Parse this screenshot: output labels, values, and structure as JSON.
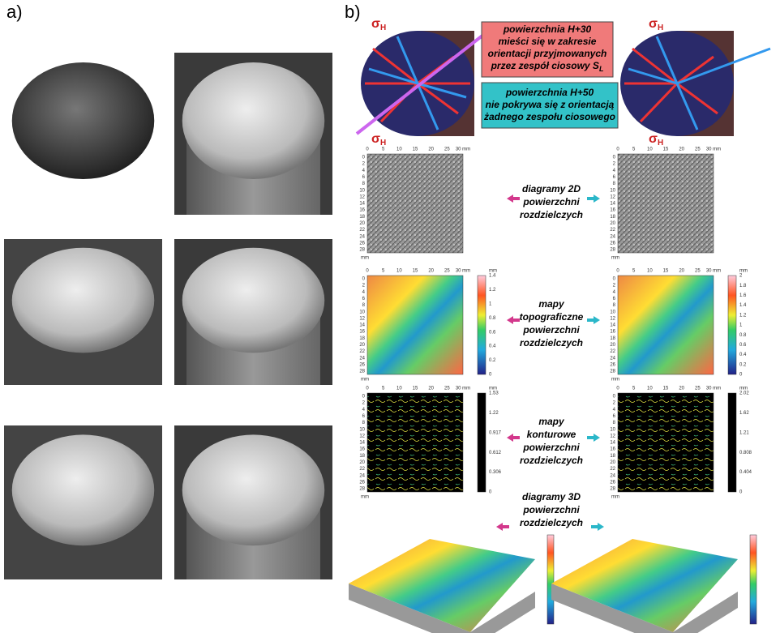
{
  "panel_a": {
    "label": "a)"
  },
  "panel_b": {
    "label": "b)",
    "sigma": "σ",
    "sigma_sub": "H",
    "callout_pink": {
      "lines": [
        "powierzchnia H+30",
        "mieści się w zakresie",
        "orientacji przyjmowanych",
        "przez zespół ciosowy S"
      ],
      "sub": "L"
    },
    "callout_cyan": {
      "lines": [
        "powierzchnia H+50",
        "nie pokrywa się z orientacją",
        "żadnego zespołu ciosowego"
      ]
    },
    "rows": [
      {
        "lines": [
          "diagramy 2D",
          "powierzchni",
          "rozdzielczych"
        ]
      },
      {
        "lines": [
          "mapy",
          "topograficzne",
          "powierzchni",
          "rozdzielczych"
        ],
        "colorbar_left": [
          "1.4",
          "1.2",
          "1",
          "0.8",
          "0.6",
          "0.4",
          "0.2",
          "0"
        ],
        "colorbar_right": [
          "2",
          "1.8",
          "1.6",
          "1.4",
          "1.2",
          "1",
          "0.8",
          "0.6",
          "0.4",
          "0.2",
          "0"
        ]
      },
      {
        "lines": [
          "mapy",
          "konturowe",
          "powierzchni",
          "rozdzielczych"
        ],
        "colorbar_left": [
          "1.53",
          "1.22",
          "0.917",
          "0.612",
          "0.306",
          "0"
        ],
        "colorbar_right": [
          "2.02",
          "1.62",
          "1.21",
          "0.808",
          "0.404",
          "0"
        ]
      },
      {
        "lines": [
          "diagramy 3D",
          "powierzchni",
          "rozdzielczych"
        ]
      }
    ],
    "axes": {
      "x": [
        "0",
        "5",
        "10",
        "15",
        "20",
        "25",
        "30 mm"
      ],
      "y": [
        "0",
        "2",
        "4",
        "6",
        "8",
        "10",
        "12",
        "14",
        "16",
        "18",
        "20",
        "22",
        "24",
        "26",
        "28"
      ],
      "unit": "mm"
    }
  }
}
